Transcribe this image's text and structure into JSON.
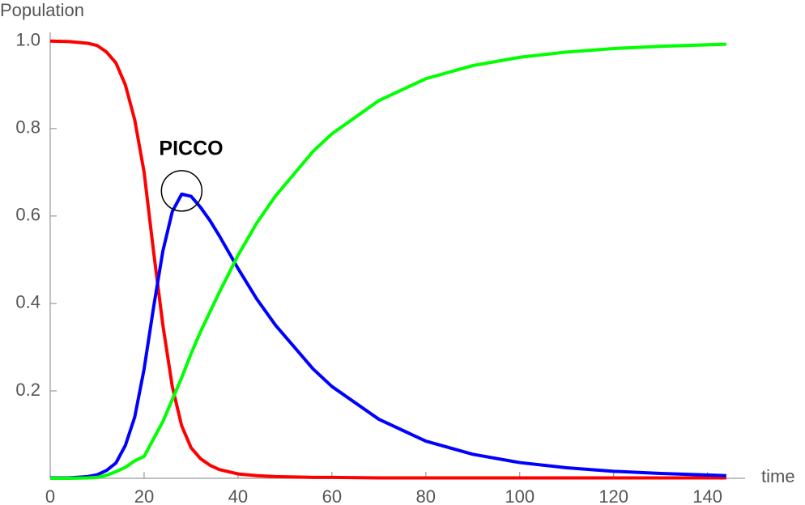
{
  "chart_data": {
    "type": "line",
    "y_label": "Population",
    "x_label": "time",
    "annotation": "PICCO",
    "x": [
      0,
      4,
      8,
      10,
      12,
      14,
      16,
      18,
      20,
      22,
      24,
      26,
      28,
      30,
      32,
      34,
      36,
      40,
      44,
      48,
      52,
      56,
      60,
      70,
      80,
      90,
      100,
      110,
      120,
      130,
      144
    ],
    "series": [
      {
        "color": "#ff0000",
        "values": [
          1.0,
          0.999,
          0.995,
          0.99,
          0.975,
          0.95,
          0.9,
          0.82,
          0.7,
          0.52,
          0.35,
          0.21,
          0.12,
          0.07,
          0.045,
          0.03,
          0.02,
          0.01,
          0.006,
          0.004,
          0.003,
          0.002,
          0.002,
          0.001,
          0.001,
          0.001,
          0.001,
          0.001,
          0.001,
          0.001,
          0.001
        ]
      },
      {
        "color": "#0000ff",
        "values": [
          0.001,
          0.001,
          0.004,
          0.008,
          0.018,
          0.035,
          0.075,
          0.14,
          0.25,
          0.39,
          0.52,
          0.61,
          0.65,
          0.645,
          0.62,
          0.59,
          0.555,
          0.48,
          0.41,
          0.35,
          0.3,
          0.25,
          0.21,
          0.135,
          0.085,
          0.055,
          0.036,
          0.024,
          0.016,
          0.011,
          0.006
        ]
      },
      {
        "color": "#00ff00",
        "values": [
          0,
          0,
          0.001,
          0.002,
          0.007,
          0.015,
          0.025,
          0.04,
          0.05,
          0.09,
          0.13,
          0.18,
          0.23,
          0.285,
          0.335,
          0.38,
          0.425,
          0.51,
          0.584,
          0.646,
          0.697,
          0.748,
          0.788,
          0.864,
          0.914,
          0.944,
          0.963,
          0.975,
          0.983,
          0.988,
          0.993
        ]
      }
    ],
    "xlim": [
      0,
      148
    ],
    "ylim": [
      0,
      1.02
    ],
    "xticks": [
      0,
      20,
      40,
      60,
      80,
      100,
      120,
      140
    ],
    "yticks": [
      0.2,
      0.4,
      0.6,
      0.8,
      {
        "value": 1,
        "label": "1.0"
      }
    ]
  }
}
